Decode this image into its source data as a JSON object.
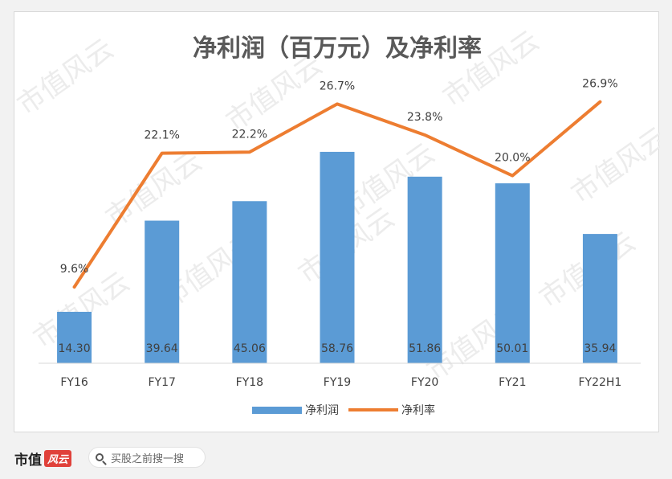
{
  "chart_data": {
    "type": "bar+line",
    "title": "净利润（百万元）及净利率",
    "categories": [
      "FY16",
      "FY17",
      "FY18",
      "FY19",
      "FY20",
      "FY21",
      "FY22H1"
    ],
    "series": [
      {
        "name": "净利润",
        "type": "bar",
        "color": "#5b9bd5",
        "values": [
          14.3,
          39.64,
          45.06,
          58.76,
          51.86,
          50.01,
          35.94
        ],
        "labels": [
          "14.30",
          "39.64",
          "45.06",
          "58.76",
          "51.86",
          "50.01",
          "35.94"
        ]
      },
      {
        "name": "净利率",
        "type": "line",
        "color": "#ed7d31",
        "values": [
          9.6,
          22.1,
          22.2,
          26.7,
          23.8,
          20.0,
          26.9
        ],
        "labels": [
          "9.6%",
          "22.1%",
          "22.2%",
          "26.7%",
          "23.8%",
          "20.0%",
          "26.9%"
        ]
      }
    ],
    "bar_axis_range": [
      0,
      65
    ],
    "line_axis_range": [
      0,
      30
    ],
    "legend_position": "bottom",
    "grid": false
  },
  "footer": {
    "brand": "市值",
    "brand_mark": "风云",
    "search_text": "买股之前搜一搜"
  },
  "watermark": "市值风云"
}
